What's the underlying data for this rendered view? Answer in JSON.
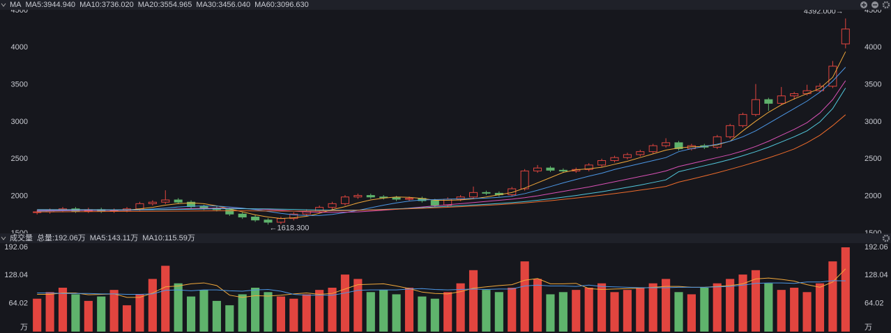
{
  "chart_data": [
    {
      "type": "candlestick",
      "title": "MA",
      "up_color": "#e2453f",
      "down_color": "#5fb36c",
      "open": [
        1780,
        1790,
        1810,
        1830,
        1800,
        1820,
        1800,
        1810,
        1830,
        1900,
        1920,
        1950,
        1920,
        1860,
        1840,
        1820,
        1760,
        1720,
        1680,
        1650,
        1700,
        1760,
        1800,
        1850,
        1900,
        1990,
        2010,
        1990,
        1980,
        1960,
        1970,
        1940,
        1880,
        1960,
        1990,
        2050,
        2040,
        2020,
        2100,
        2340,
        2380,
        2350,
        2340,
        2360,
        2420,
        2480,
        2520,
        2560,
        2600,
        2680,
        2720,
        2640,
        2680,
        2660,
        2800,
        2950,
        3100,
        3300,
        3250,
        3350,
        3380,
        3420,
        3480,
        4050
      ],
      "high": [
        1815,
        1835,
        1855,
        1855,
        1845,
        1845,
        1835,
        1855,
        1925,
        1945,
        2080,
        1975,
        1945,
        1885,
        1865,
        1845,
        1785,
        1745,
        1705,
        1725,
        1785,
        1825,
        1875,
        1925,
        2015,
        2035,
        2035,
        2015,
        2005,
        1995,
        1995,
        1965,
        1985,
        2015,
        2130,
        2075,
        2065,
        2125,
        2365,
        2420,
        2405,
        2375,
        2385,
        2445,
        2505,
        2545,
        2585,
        2625,
        2705,
        2780,
        2745,
        2705,
        2705,
        2825,
        2975,
        3125,
        3510,
        3325,
        3470,
        3405,
        3500,
        3520,
        3820,
        4392
      ],
      "low": [
        1755,
        1765,
        1785,
        1775,
        1775,
        1775,
        1775,
        1785,
        1805,
        1875,
        1895,
        1895,
        1835,
        1815,
        1795,
        1735,
        1695,
        1655,
        1618.3,
        1625,
        1675,
        1735,
        1775,
        1825,
        1875,
        1965,
        1965,
        1955,
        1935,
        1935,
        1915,
        1855,
        1855,
        1935,
        1965,
        2015,
        1995,
        1995,
        2075,
        2315,
        2325,
        2315,
        2315,
        2335,
        2395,
        2455,
        2495,
        2535,
        2575,
        2655,
        2615,
        2615,
        2635,
        2635,
        2775,
        2925,
        3075,
        3150,
        3225,
        3300,
        3355,
        3395,
        3455,
        3990
      ],
      "close": [
        1790,
        1810,
        1830,
        1800,
        1820,
        1800,
        1810,
        1830,
        1900,
        1920,
        1950,
        1920,
        1860,
        1840,
        1820,
        1760,
        1720,
        1680,
        1650,
        1700,
        1760,
        1800,
        1850,
        1900,
        1990,
        2010,
        1990,
        1980,
        1960,
        1970,
        1940,
        1880,
        1960,
        1990,
        2050,
        2040,
        2020,
        2100,
        2340,
        2380,
        2350,
        2340,
        2360,
        2420,
        2480,
        2520,
        2560,
        2600,
        2680,
        2720,
        2640,
        2680,
        2660,
        2800,
        2950,
        3100,
        3300,
        3250,
        3350,
        3380,
        3420,
        3480,
        3750,
        4250
      ],
      "series": [
        {
          "name": "MA5",
          "label": "MA5:3944.940",
          "color": "#f2a93b",
          "values": [
            1800,
            1805,
            1810,
            1815,
            1815,
            1815,
            1810,
            1812,
            1830,
            1850,
            1880,
            1900,
            1910,
            1900,
            1870,
            1830,
            1790,
            1750,
            1720,
            1700,
            1710,
            1730,
            1770,
            1820,
            1860,
            1910,
            1950,
            1975,
            1990,
            1985,
            1970,
            1945,
            1945,
            1950,
            1965,
            1990,
            2020,
            2050,
            2110,
            2180,
            2250,
            2320,
            2355,
            2370,
            2390,
            2430,
            2470,
            2520,
            2570,
            2620,
            2650,
            2665,
            2670,
            2690,
            2740,
            2880,
            3010,
            3130,
            3230,
            3310,
            3380,
            3450,
            3600,
            3944.94
          ]
        },
        {
          "name": "MA10",
          "label": "MA10:3736.020",
          "color": "#4c97e6",
          "values": [
            1800,
            1802,
            1805,
            1808,
            1810,
            1812,
            1812,
            1813,
            1818,
            1828,
            1840,
            1855,
            1865,
            1870,
            1868,
            1855,
            1840,
            1820,
            1795,
            1770,
            1750,
            1740,
            1740,
            1755,
            1780,
            1810,
            1845,
            1880,
            1910,
            1935,
            1950,
            1955,
            1960,
            1965,
            1970,
            1975,
            1985,
            2000,
            2035,
            2080,
            2130,
            2180,
            2225,
            2270,
            2310,
            2360,
            2400,
            2440,
            2480,
            2520,
            2600,
            2640,
            2670,
            2700,
            2740,
            2800,
            2880,
            2980,
            3080,
            3180,
            3280,
            3400,
            3550,
            3736.02
          ]
        },
        {
          "name": "MA20",
          "label": "MA20:3554.965",
          "color": "#d951b5",
          "values": [
            1810,
            1810,
            1810,
            1810,
            1810,
            1811,
            1812,
            1813,
            1815,
            1818,
            1822,
            1828,
            1834,
            1838,
            1840,
            1838,
            1834,
            1828,
            1820,
            1810,
            1800,
            1790,
            1785,
            1783,
            1785,
            1790,
            1800,
            1812,
            1825,
            1840,
            1855,
            1870,
            1885,
            1900,
            1915,
            1930,
            1945,
            1960,
            1980,
            2005,
            2035,
            2065,
            2095,
            2125,
            2160,
            2195,
            2230,
            2265,
            2300,
            2340,
            2400,
            2440,
            2480,
            2520,
            2560,
            2610,
            2670,
            2740,
            2820,
            2900,
            2990,
            3120,
            3300,
            3554.965
          ]
        },
        {
          "name": "MA30",
          "label": "MA30:3456.040",
          "color": "#52c8dc",
          "values": [
            1820,
            1820,
            1820,
            1819,
            1819,
            1818,
            1818,
            1818,
            1818,
            1819,
            1820,
            1822,
            1825,
            1828,
            1830,
            1832,
            1832,
            1831,
            1829,
            1826,
            1822,
            1818,
            1814,
            1812,
            1812,
            1814,
            1818,
            1824,
            1830,
            1838,
            1846,
            1855,
            1864,
            1873,
            1882,
            1892,
            1902,
            1914,
            1928,
            1945,
            1965,
            1987,
            2010,
            2035,
            2060,
            2090,
            2120,
            2150,
            2185,
            2220,
            2330,
            2370,
            2410,
            2450,
            2495,
            2545,
            2600,
            2660,
            2730,
            2800,
            2880,
            3000,
            3180,
            3456.04
          ]
        },
        {
          "name": "MA60",
          "label": "MA60:3096.630",
          "color": "#ef6c2b",
          "values": [
            1790,
            1790,
            1791,
            1792,
            1793,
            1794,
            1795,
            1796,
            1797,
            1798,
            1799,
            1800,
            1801,
            1802,
            1803,
            1803,
            1803,
            1802,
            1801,
            1800,
            1800,
            1800,
            1801,
            1803,
            1806,
            1810,
            1815,
            1820,
            1826,
            1832,
            1838,
            1845,
            1852,
            1860,
            1868,
            1877,
            1887,
            1898,
            1910,
            1925,
            1940,
            1958,
            1976,
            1995,
            2015,
            2036,
            2058,
            2082,
            2106,
            2132,
            2190,
            2230,
            2272,
            2316,
            2362,
            2410,
            2462,
            2516,
            2574,
            2636,
            2720,
            2820,
            2950,
            3096.63
          ]
        }
      ],
      "annotations": {
        "max": "4392.000→",
        "min": "←1618.300"
      },
      "ylim": [
        1500,
        4500
      ],
      "yticks": [
        1500,
        2000,
        2500,
        3000,
        3500,
        4000,
        4500
      ],
      "grid": false
    },
    {
      "type": "bar",
      "title": "成交量",
      "total_label": "总量:192.06万",
      "total_color": "#e2453f",
      "unit": "万",
      "values": [
        75,
        90,
        100,
        85,
        70,
        80,
        95,
        60,
        85,
        120,
        150,
        110,
        80,
        95,
        70,
        60,
        85,
        100,
        90,
        80,
        75,
        85,
        95,
        100,
        130,
        120,
        90,
        95,
        85,
        100,
        80,
        75,
        90,
        110,
        140,
        95,
        90,
        100,
        160,
        120,
        85,
        90,
        95,
        100,
        110,
        90,
        95,
        100,
        110,
        120,
        90,
        85,
        100,
        110,
        120,
        130,
        140,
        110,
        95,
        100,
        90,
        110,
        160,
        192.06
      ],
      "series": [
        {
          "name": "MA5",
          "label": "MA5:143.11万",
          "color": "#f2a93b",
          "values": [
            85,
            85,
            88,
            88,
            84,
            85,
            86,
            78,
            78,
            88,
            102,
            104,
            109,
            111,
            105,
            83,
            78,
            82,
            81,
            83,
            86,
            88,
            85,
            87,
            97,
            107,
            108,
            109,
            104,
            98,
            90,
            87,
            86,
            91,
            99,
            102,
            105,
            107,
            117,
            121,
            109,
            109,
            110,
            98,
            96,
            97,
            98,
            99,
            101,
            103,
            103,
            101,
            101,
            103,
            105,
            109,
            120,
            122,
            119,
            115,
            107,
            101,
            113,
            143.11
          ]
        },
        {
          "name": "MA10",
          "label": "MA10:115.59万",
          "color": "#4c97e6",
          "values": [
            88,
            88,
            87,
            87,
            87,
            86,
            86,
            85,
            85,
            86,
            94,
            95,
            93,
            95,
            95,
            93,
            92,
            95,
            96,
            92,
            85,
            83,
            83,
            83,
            88,
            94,
            95,
            95,
            95,
            97,
            98,
            96,
            95,
            96,
            97,
            96,
            97,
            97,
            104,
            106,
            104,
            104,
            103,
            106,
            103,
            102,
            101,
            100,
            100,
            100,
            101,
            101,
            101,
            102,
            103,
            106,
            110,
            111,
            111,
            110,
            113,
            113,
            116,
            115.59
          ]
        }
      ],
      "ylim": [
        0,
        200
      ],
      "yticks": [
        64.02,
        128.04,
        192.06
      ],
      "grid": false
    }
  ]
}
